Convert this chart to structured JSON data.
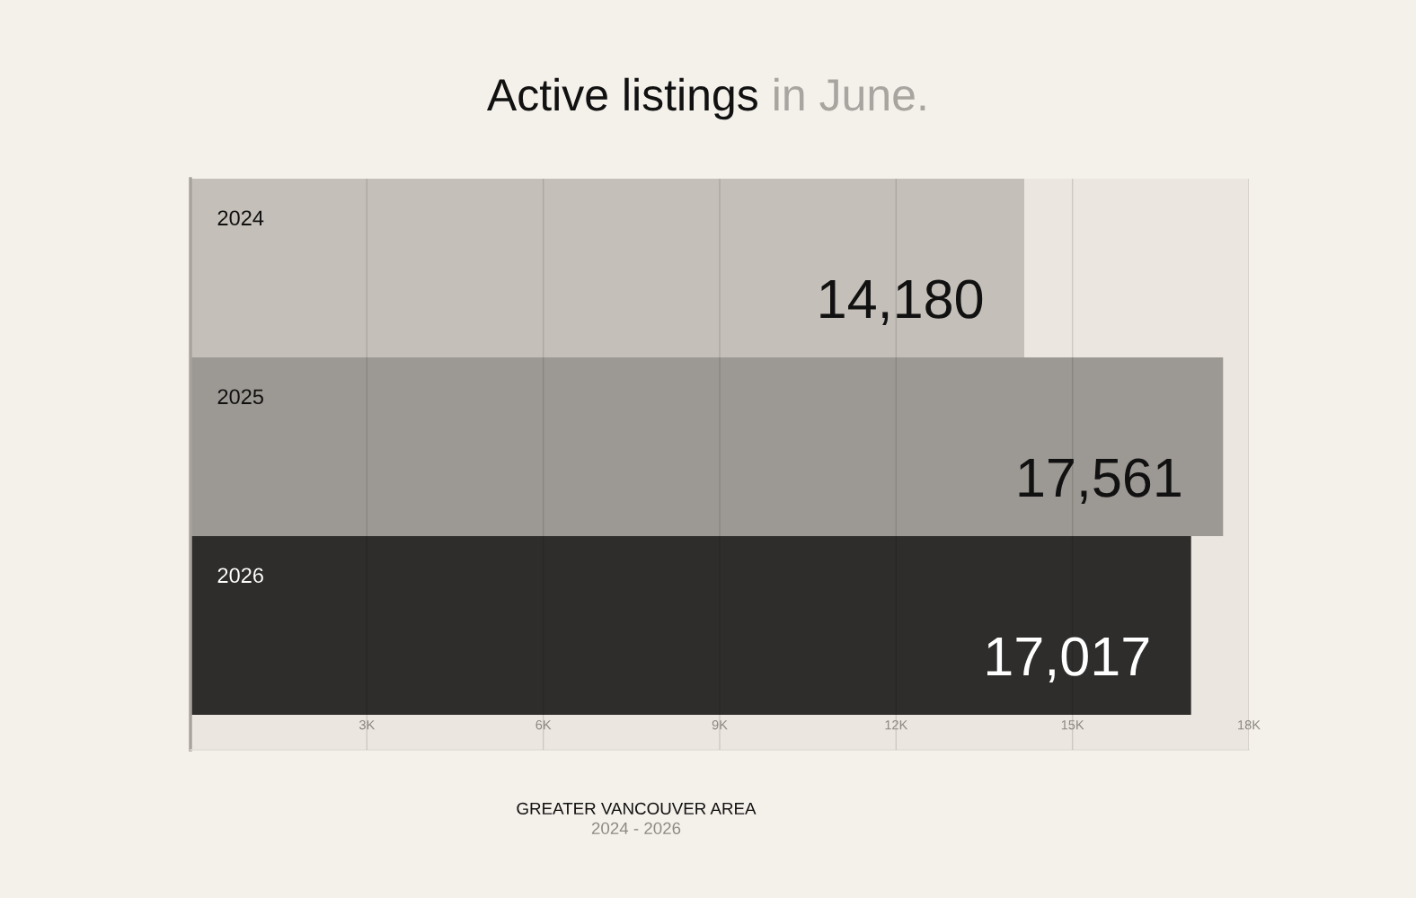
{
  "chart_data": {
    "type": "bar",
    "orientation": "horizontal",
    "title": "Active listings in June.",
    "categories": [
      "2024",
      "2025",
      "2026"
    ],
    "values": [
      14180,
      17561,
      17017
    ],
    "value_labels": [
      "14,180",
      "17,561",
      "17,017"
    ],
    "colors": [
      "#c4bfb8",
      "#9c9893",
      "#2e2d2b"
    ],
    "xlim": [
      0,
      18000
    ],
    "xticks": [
      {
        "value": 3000,
        "label": "3K"
      },
      {
        "value": 6000,
        "label": "6K"
      },
      {
        "value": 9000,
        "label": "9K"
      },
      {
        "value": 12000,
        "label": "12K"
      },
      {
        "value": 15000,
        "label": "15K"
      },
      {
        "value": 18000,
        "label": "18K"
      }
    ],
    "grid": "x",
    "legend": false,
    "annotations": [
      "GREATER VANCOUVER AREA",
      "2024 - 2026"
    ]
  }
}
